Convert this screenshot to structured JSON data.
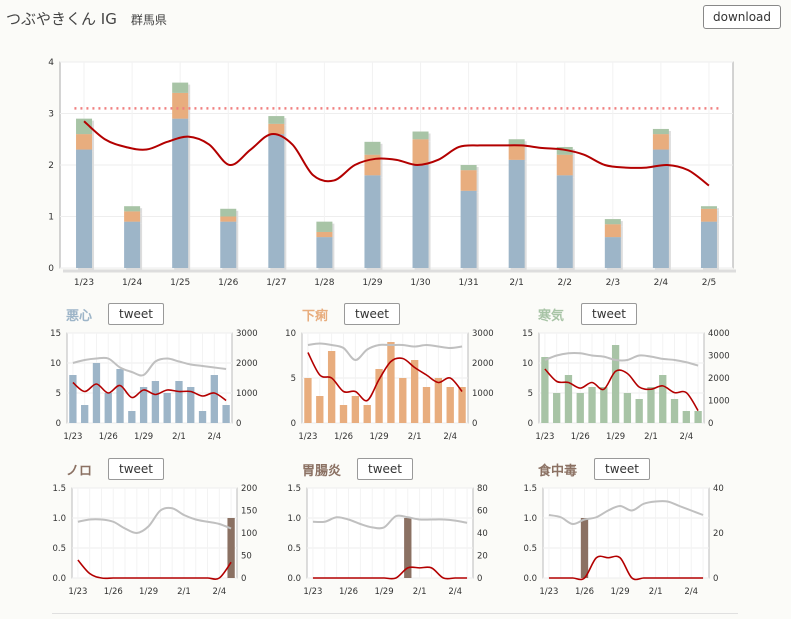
{
  "header": {
    "title": "つぶやきくん IG",
    "region": "群馬県",
    "download_label": "download"
  },
  "colors": {
    "blue": "#9db5c8",
    "orange": "#e8ad7e",
    "green": "#a8c4a6",
    "brown": "#8b7163",
    "trend": "#b30000",
    "avg": "#c0c0c0",
    "threshold": "#f08080"
  },
  "chart_data": [
    {
      "id": "main",
      "type": "bar",
      "stacked": true,
      "categories": [
        "1/23",
        "1/24",
        "1/25",
        "1/26",
        "1/27",
        "1/28",
        "1/29",
        "1/30",
        "1/31",
        "2/1",
        "2/2",
        "2/3",
        "2/4",
        "2/5"
      ],
      "ylim": [
        0,
        4
      ],
      "yticks": [
        0,
        1,
        2,
        3,
        4
      ],
      "series": [
        {
          "values": [
            2.3,
            0.9,
            2.9,
            0.9,
            2.6,
            0.6,
            1.8,
            2.0,
            1.5,
            2.1,
            1.8,
            0.6,
            2.3,
            0.9
          ]
        },
        {
          "values": [
            0.3,
            0.2,
            0.5,
            0.1,
            0.2,
            0.1,
            0.4,
            0.5,
            0.4,
            0.3,
            0.4,
            0.25,
            0.3,
            0.25
          ]
        },
        {
          "values": [
            0.3,
            0.1,
            0.2,
            0.15,
            0.15,
            0.2,
            0.25,
            0.15,
            0.1,
            0.1,
            0.15,
            0.1,
            0.1,
            0.05
          ]
        }
      ],
      "trend": [
        2.85,
        2.5,
        2.35,
        2.3,
        2.45,
        2.55,
        2.4,
        2.0,
        2.3,
        2.6,
        2.4,
        1.8,
        1.7,
        2.0,
        2.12,
        2.1,
        2.0,
        2.1,
        2.35,
        2.38,
        2.38,
        2.38,
        2.33,
        2.3,
        2.2,
        2.0,
        1.95,
        1.95,
        2.0,
        1.9,
        1.6
      ],
      "threshold": 3.1
    },
    {
      "id": "nausea",
      "label": "悪心",
      "tweet_label": "tweet",
      "type": "bar",
      "x_ticks": [
        "1/23",
        "1/26",
        "1/29",
        "2/1",
        "2/4"
      ],
      "ylim": [
        0,
        15
      ],
      "yticks": [
        0,
        5,
        10,
        15
      ],
      "y2lim": [
        0,
        3000
      ],
      "y2ticks": [
        0,
        1000,
        2000,
        3000
      ],
      "values": [
        8,
        3,
        10,
        5,
        9,
        2,
        6,
        7,
        5,
        7,
        6,
        2,
        8,
        3
      ],
      "avg": [
        2000,
        2100,
        2150,
        2150,
        1850,
        1700,
        1600,
        2050,
        2150,
        2050,
        1950,
        1900,
        1850,
        1800
      ],
      "trend": [
        1350,
        1050,
        1300,
        1000,
        1250,
        850,
        1100,
        950,
        1100,
        1050,
        1050,
        900,
        1000,
        750
      ]
    },
    {
      "id": "diarrhea",
      "label": "下痢",
      "tweet_label": "tweet",
      "type": "bar",
      "x_ticks": [
        "1/23",
        "1/26",
        "1/29",
        "2/1",
        "2/4"
      ],
      "ylim": [
        0,
        10
      ],
      "yticks": [
        0,
        5,
        10
      ],
      "y2lim": [
        0,
        3000
      ],
      "y2ticks": [
        0,
        1000,
        2000,
        3000
      ],
      "values": [
        5,
        3,
        8,
        2,
        3,
        2,
        6,
        9,
        5,
        7,
        4,
        5,
        4,
        4
      ],
      "avg": [
        2600,
        2650,
        2600,
        2500,
        2100,
        2450,
        2600,
        2600,
        2600,
        2550,
        2600,
        2550,
        2500,
        2550
      ],
      "trend": [
        2350,
        1600,
        1500,
        1050,
        1050,
        750,
        1450,
        2050,
        2150,
        1850,
        1600,
        1350,
        1500,
        1050
      ]
    },
    {
      "id": "chills",
      "label": "寒気",
      "tweet_label": "tweet",
      "type": "bar",
      "x_ticks": [
        "1/23",
        "1/26",
        "1/29",
        "2/1",
        "2/4"
      ],
      "ylim": [
        0,
        15
      ],
      "yticks": [
        0,
        5,
        10,
        15
      ],
      "y2lim": [
        0,
        4000
      ],
      "y2ticks": [
        0,
        1000,
        2000,
        3000,
        4000
      ],
      "values": [
        11,
        5,
        8,
        5,
        6,
        6,
        13,
        5,
        4,
        6,
        8,
        4,
        2,
        2
      ],
      "avg": [
        2800,
        3000,
        3100,
        3100,
        3000,
        2950,
        2800,
        2800,
        3000,
        2950,
        2850,
        2800,
        2700,
        2550
      ],
      "trend": [
        2400,
        1850,
        1800,
        1550,
        1800,
        1500,
        2300,
        2200,
        1600,
        1500,
        1650,
        1350,
        1350,
        550
      ]
    },
    {
      "id": "noro",
      "label": "ノロ",
      "tweet_label": "tweet",
      "type": "bar",
      "x_ticks": [
        "1/23",
        "1/26",
        "1/29",
        "2/1",
        "2/4"
      ],
      "ylim": [
        0,
        1.5
      ],
      "yticks": [
        "0.0",
        "0.5",
        "1.0",
        "1.5"
      ],
      "y2lim": [
        0,
        200
      ],
      "y2ticks": [
        0,
        50,
        100,
        150,
        200
      ],
      "values": [
        0,
        0,
        0,
        0,
        0,
        0,
        0,
        0,
        0,
        0,
        0,
        0,
        0,
        1
      ],
      "avg": [
        125,
        130,
        130,
        125,
        110,
        100,
        115,
        150,
        155,
        140,
        130,
        125,
        120,
        110
      ],
      "trend": [
        40,
        10,
        0,
        0,
        0,
        0,
        0,
        0,
        0,
        0,
        0,
        0,
        0,
        35
      ]
    },
    {
      "id": "gastro",
      "label": "胃腸炎",
      "tweet_label": "tweet",
      "type": "bar",
      "x_ticks": [
        "1/23",
        "1/26",
        "1/29",
        "2/1",
        "2/4"
      ],
      "ylim": [
        0,
        1.5
      ],
      "yticks": [
        "0.0",
        "0.5",
        "1.0",
        "1.5"
      ],
      "y2lim": [
        0,
        80
      ],
      "y2ticks": [
        0,
        20,
        40,
        60,
        80
      ],
      "values": [
        0,
        0,
        0,
        0,
        0,
        0,
        0,
        0,
        1,
        0,
        0,
        0,
        0,
        0
      ],
      "avg": [
        50,
        50,
        54,
        52,
        48,
        45,
        45,
        55,
        54,
        52,
        52,
        52,
        51,
        49
      ],
      "trend": [
        0,
        0,
        0,
        0,
        0,
        0,
        0,
        0,
        9,
        9,
        9,
        0,
        0,
        0
      ]
    },
    {
      "id": "food_poisoning",
      "label": "食中毒",
      "tweet_label": "tweet",
      "type": "bar",
      "x_ticks": [
        "1/23",
        "1/26",
        "1/29",
        "2/1",
        "2/4"
      ],
      "ylim": [
        0,
        1.5
      ],
      "yticks": [
        "0.0",
        "0.5",
        "1.0",
        "1.5"
      ],
      "y2lim": [
        0,
        40
      ],
      "y2ticks": [
        0,
        20,
        40
      ],
      "values": [
        0,
        0,
        0,
        1,
        0,
        0,
        0,
        0,
        0,
        0,
        0,
        0,
        0,
        0
      ],
      "avg": [
        28,
        27,
        24,
        26,
        27,
        30,
        32,
        30,
        33,
        34,
        34,
        32,
        30,
        28
      ],
      "trend": [
        0,
        0,
        0,
        0,
        9,
        9,
        9,
        0,
        0,
        0,
        0,
        0,
        0,
        0
      ]
    }
  ]
}
